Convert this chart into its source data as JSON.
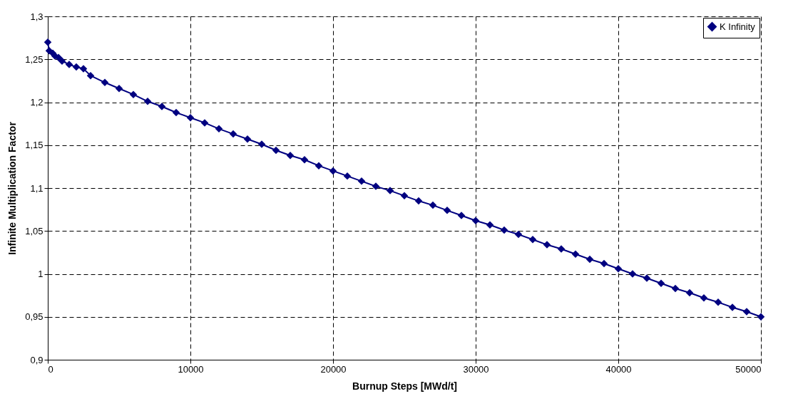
{
  "chart_data": {
    "type": "line",
    "xlabel": "Burnup Steps [MWd/t]",
    "ylabel": "Infinite Multiplication Factor",
    "x": [
      0,
      100,
      350,
      500,
      750,
      1000,
      1500,
      2000,
      2500,
      3000,
      4000,
      5000,
      6000,
      7000,
      8000,
      9000,
      10000,
      11000,
      12000,
      13000,
      14000,
      15000,
      16000,
      17000,
      18000,
      19000,
      20000,
      21000,
      22000,
      23000,
      24000,
      25000,
      26000,
      27000,
      28000,
      29000,
      30000,
      31000,
      32000,
      33000,
      34000,
      35000,
      36000,
      37000,
      38000,
      39000,
      40000,
      41000,
      42000,
      43000,
      44000,
      45000,
      46000,
      47000,
      48000,
      49000,
      50000
    ],
    "series": [
      {
        "name": "K Infinity",
        "color": "#000080",
        "values": [
          1.27,
          1.26,
          1.257,
          1.254,
          1.252,
          1.248,
          1.244,
          1.241,
          1.239,
          1.231,
          1.223,
          1.216,
          1.209,
          1.201,
          1.195,
          1.188,
          1.182,
          1.176,
          1.169,
          1.163,
          1.157,
          1.151,
          1.144,
          1.138,
          1.133,
          1.126,
          1.12,
          1.114,
          1.108,
          1.102,
          1.097,
          1.091,
          1.085,
          1.08,
          1.074,
          1.068,
          1.062,
          1.057,
          1.051,
          1.046,
          1.04,
          1.034,
          1.029,
          1.023,
          1.017,
          1.012,
          1.006,
          1.0,
          0.995,
          0.989,
          0.983,
          0.978,
          0.972,
          0.967,
          0.961,
          0.956,
          0.95
        ]
      }
    ],
    "xlim": [
      0,
      50000
    ],
    "xticks": [
      0,
      10000,
      20000,
      30000,
      40000,
      50000
    ],
    "ylim": [
      0.9,
      1.3
    ],
    "yticks": [
      {
        "value": 0.9,
        "label": "0,9"
      },
      {
        "value": 0.95,
        "label": "0,95"
      },
      {
        "value": 1,
        "label": "1"
      },
      {
        "value": 1.05,
        "label": "1,05"
      },
      {
        "value": 1.1,
        "label": "1,1"
      },
      {
        "value": 1.15,
        "label": "1,15"
      },
      {
        "value": 1.2,
        "label": "1,2"
      },
      {
        "value": 1.25,
        "label": "1,25"
      },
      {
        "value": 1.3,
        "label": "1,3"
      }
    ],
    "grid": true,
    "legend": "top right",
    "marker": "diamond",
    "line_style": "solid"
  }
}
